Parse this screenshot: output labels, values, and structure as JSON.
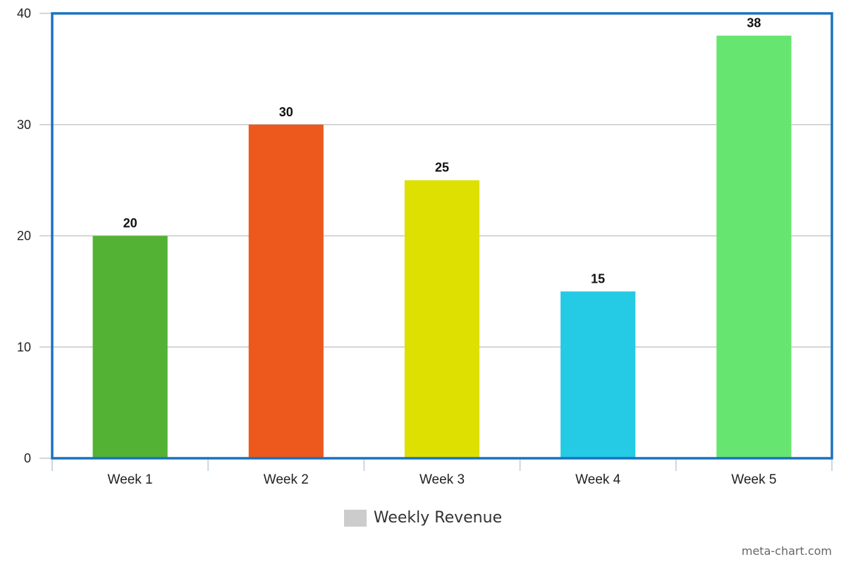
{
  "chart_data": {
    "type": "bar",
    "categories": [
      "Week 1",
      "Week 2",
      "Week 3",
      "Week 4",
      "Week 5"
    ],
    "series": [
      {
        "name": "Weekly Revenue",
        "values": [
          20,
          30,
          25,
          15,
          38
        ]
      }
    ],
    "bar_colors": [
      "#53b234",
      "#ed581d",
      "#dde000",
      "#25cae5",
      "#66e570"
    ],
    "ylim": [
      0,
      40
    ],
    "yticks": [
      0,
      10,
      20,
      30,
      40
    ],
    "grid": true,
    "data_labels": true,
    "legend": {
      "position": "bottom-center",
      "swatch_color": "#cccccc"
    },
    "frame_color": "#1a72c0",
    "gridline_color": "#c8c8c8"
  },
  "credit": "meta-chart.com"
}
